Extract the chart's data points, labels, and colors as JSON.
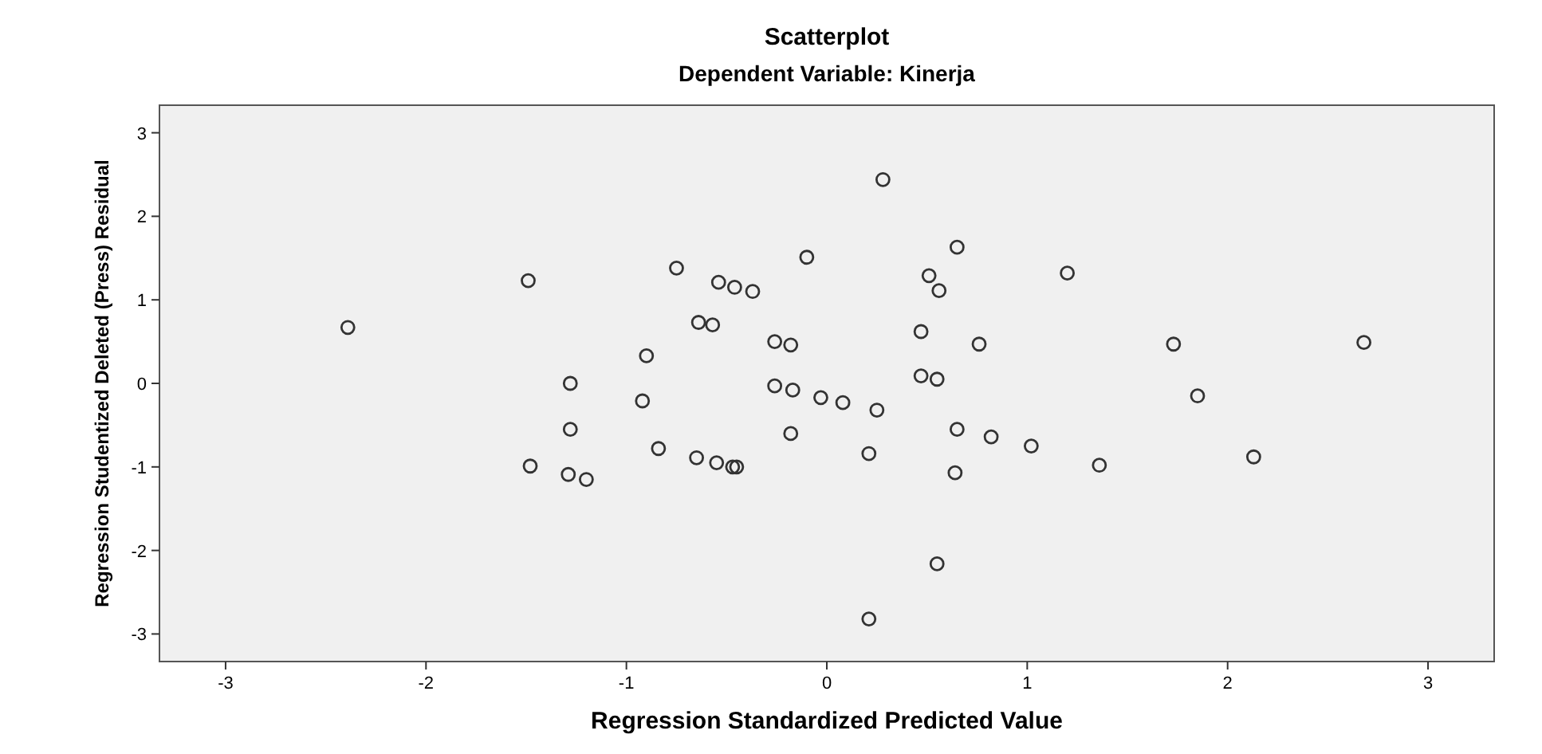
{
  "chart_data": {
    "type": "scatter",
    "title": "Scatterplot",
    "subtitle": "Dependent Variable: Kinerja",
    "xlabel": "Regression Standardized Predicted Value",
    "ylabel": "Regression Studentized Deleted (Press) Residual",
    "xlim": [
      -3.33,
      3.33
    ],
    "ylim": [
      -3.33,
      3.33
    ],
    "xticks": [
      -3,
      -2,
      -1,
      0,
      1,
      2,
      3
    ],
    "yticks": [
      -3,
      -2,
      -1,
      0,
      1,
      2,
      3
    ],
    "grid": false,
    "marker": "circle",
    "series": [
      {
        "color": "#333333",
        "x": [
          -2.39,
          -1.49,
          -1.28,
          -1.28,
          -1.48,
          -1.29,
          -1.2,
          -0.9,
          -0.92,
          -0.84,
          -0.75,
          -0.64,
          -0.57,
          -0.54,
          -0.46,
          -0.37,
          -0.65,
          -0.55,
          -0.47,
          -0.45,
          -0.26,
          -0.18,
          -0.26,
          -0.17,
          -0.18,
          -0.1,
          0.28,
          0.65,
          0.51,
          0.56,
          1.2,
          0.47,
          0.76,
          1.73,
          2.68,
          -0.03,
          0.08,
          0.25,
          0.47,
          0.55,
          1.85,
          0.65,
          0.82,
          1.02,
          0.21,
          0.64,
          1.36,
          2.13,
          0.55,
          0.21
        ],
        "values": [
          0.67,
          1.23,
          0,
          -0.55,
          -0.99,
          -1.09,
          -1.15,
          0.33,
          -0.21,
          -0.78,
          1.38,
          0.73,
          0.7,
          1.21,
          1.15,
          1.1,
          -0.89,
          -0.95,
          -1,
          -1,
          0.5,
          0.46,
          -0.03,
          -0.08,
          -0.6,
          1.51,
          2.44,
          1.63,
          1.29,
          1.11,
          1.32,
          0.62,
          0.47,
          0.47,
          0.49,
          -0.17,
          -0.23,
          -0.32,
          0.09,
          0.05,
          -0.15,
          -0.55,
          -0.64,
          -0.75,
          -0.84,
          -1.07,
          -0.98,
          -0.88,
          -2.16,
          -2.82
        ]
      }
    ]
  }
}
